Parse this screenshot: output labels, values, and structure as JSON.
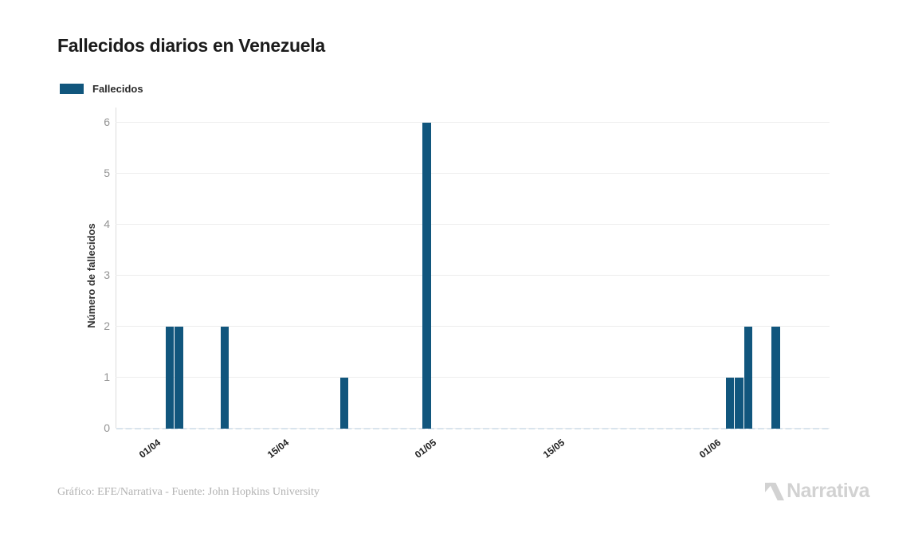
{
  "header": {
    "title": "Fallecidos diarios en Venezuela"
  },
  "legend": {
    "label": "Fallecidos"
  },
  "footer": {
    "credit": "Gráfico: EFE/Narrativa - Fuente: John Hopkins University",
    "brand": "Narrativa"
  },
  "colors": {
    "bar": "#11567d",
    "gridline": "#ededed",
    "axis_line": "#dcdcdc",
    "zero_dash": "#d9e4ed",
    "ytick_text": "#949494",
    "xtick_text": "#1e1e1e",
    "title_text": "#1b1b1b",
    "footer_text": "#b1b1b1",
    "logo": "#d2d2d2"
  },
  "chart_data": {
    "type": "bar",
    "title": "Fallecidos diarios en Venezuela",
    "xlabel": "",
    "ylabel": "Número de fallecidos",
    "ylim": [
      0,
      6
    ],
    "yticks": [
      0,
      1,
      2,
      3,
      4,
      5,
      6
    ],
    "xticks": [
      {
        "label": "01/04"
      },
      {
        "label": "15/04"
      },
      {
        "label": "01/05"
      },
      {
        "label": "15/05"
      },
      {
        "label": "01/06"
      }
    ],
    "x_range": {
      "start": "01/04",
      "end": "13/06"
    },
    "grid": "horizontal",
    "legend_position": "top-left",
    "series": [
      {
        "name": "Fallecidos",
        "color": "#11567d",
        "points": [
          {
            "date": "03/04",
            "value": 2
          },
          {
            "date": "04/04",
            "value": 2
          },
          {
            "date": "09/04",
            "value": 2
          },
          {
            "date": "22/04",
            "value": 1
          },
          {
            "date": "01/05",
            "value": 6
          },
          {
            "date": "03/06",
            "value": 1
          },
          {
            "date": "04/06",
            "value": 1
          },
          {
            "date": "05/06",
            "value": 2
          },
          {
            "date": "08/06",
            "value": 2
          }
        ]
      }
    ],
    "zero_note": "Los demás días del rango se muestran con valor 0 (línea base discontinua)"
  }
}
